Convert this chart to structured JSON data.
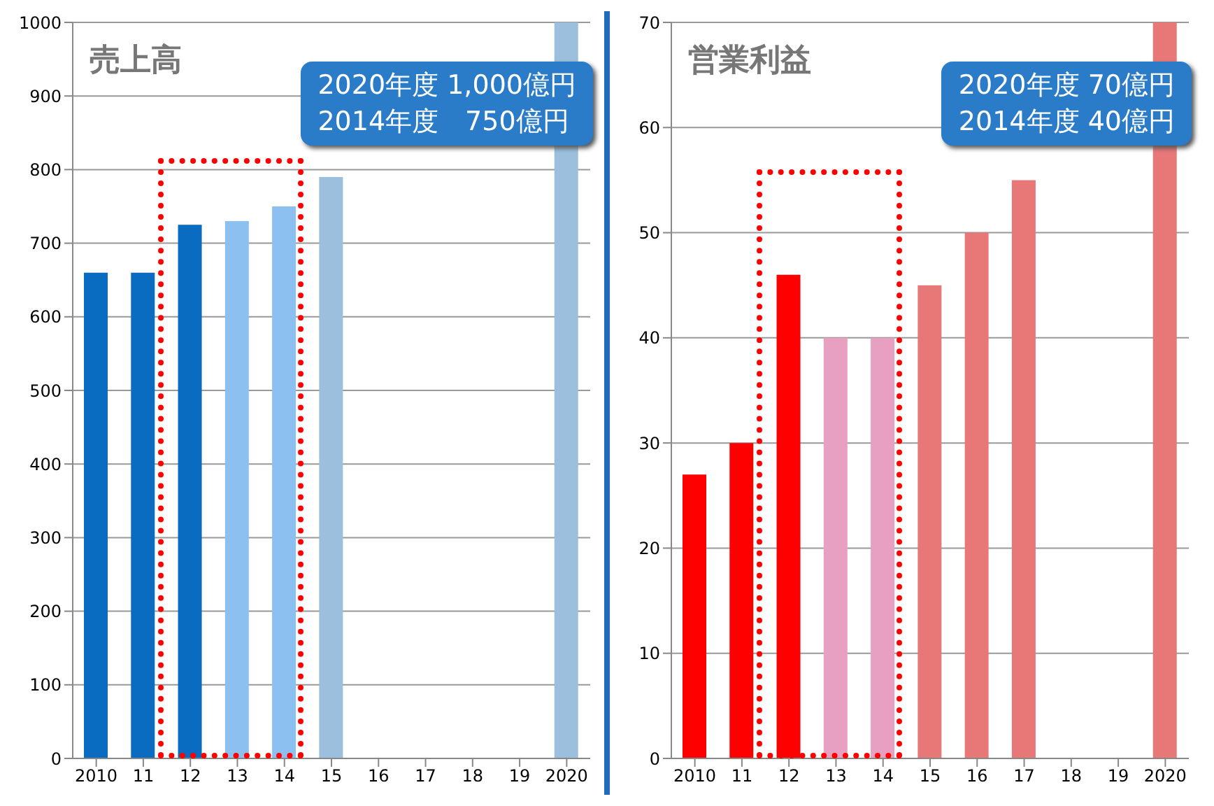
{
  "chart_data": [
    {
      "type": "bar",
      "title": "売上高",
      "categories": [
        "2010",
        "11",
        "12",
        "13",
        "14",
        "15",
        "16",
        "17",
        "18",
        "19",
        "2020"
      ],
      "values": [
        660,
        660,
        725,
        730,
        750,
        790,
        null,
        null,
        null,
        null,
        1000
      ],
      "colors": [
        "#0a6cc0",
        "#0a6cc0",
        "#0a6cc0",
        "#8cc0f0",
        "#8cc0f0",
        "#9bbfdc",
        "#9bbfdc",
        "#9bbfdc",
        "#9bbfdc",
        "#9bbfdc",
        "#9bbfdc"
      ],
      "ylim": [
        0,
        1000
      ],
      "yticks": [
        0,
        100,
        200,
        300,
        400,
        500,
        600,
        700,
        800,
        900,
        1000
      ],
      "grid": "y",
      "annotations": [
        "2020年度 1,000億円",
        "2014年度　750億円"
      ]
    },
    {
      "type": "bar",
      "title": "営業利益",
      "categories": [
        "2010",
        "11",
        "12",
        "13",
        "14",
        "15",
        "16",
        "17",
        "18",
        "19",
        "2020"
      ],
      "values": [
        27,
        30,
        46,
        40,
        40,
        45,
        50,
        55,
        null,
        null,
        70
      ],
      "colors": [
        "#ff0000",
        "#ff0000",
        "#ff0000",
        "#e8a0c0",
        "#e8a0c0",
        "#e87878",
        "#e87878",
        "#e87878",
        "#e87878",
        "#e87878",
        "#e87878"
      ],
      "ylim": [
        0,
        70
      ],
      "yticks": [
        0,
        10,
        20,
        30,
        40,
        50,
        60,
        70
      ],
      "grid": "y",
      "annotations": [
        "2020年度 70億円",
        "2014年度 40億円"
      ]
    }
  ]
}
